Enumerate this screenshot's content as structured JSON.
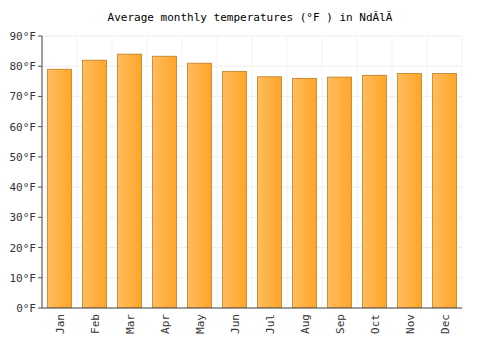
{
  "chart_data": {
    "type": "bar",
    "title": "Average monthly temperatures (°F ) in NdĂlĂ",
    "categories": [
      "Jan",
      "Feb",
      "Mar",
      "Apr",
      "May",
      "Jun",
      "Jul",
      "Aug",
      "Sep",
      "Oct",
      "Nov",
      "Dec"
    ],
    "values": [
      79,
      82,
      84,
      83.3,
      81,
      78.3,
      76.5,
      76,
      76.4,
      77,
      77.6,
      77.6
    ],
    "color": "#ffa528",
    "ylim": [
      0,
      90
    ],
    "yticks": [
      {
        "value": 0,
        "label": "0°F"
      },
      {
        "value": 10,
        "label": "10°F"
      },
      {
        "value": 20,
        "label": "20°F"
      },
      {
        "value": 30,
        "label": "30°F"
      },
      {
        "value": 40,
        "label": "40°F"
      },
      {
        "value": 50,
        "label": "50°F"
      },
      {
        "value": 60,
        "label": "60°F"
      },
      {
        "value": 70,
        "label": "70°F"
      },
      {
        "value": 80,
        "label": "80°F"
      },
      {
        "value": 90,
        "label": "90°F"
      }
    ],
    "grid": true
  }
}
